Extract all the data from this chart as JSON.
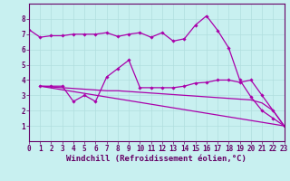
{
  "background_color": "#c8f0f0",
  "line_color": "#aa00aa",
  "grid_color": "#b0dede",
  "xlabel": "Windchill (Refroidissement éolien,°C)",
  "xlabel_fontsize": 6.5,
  "tick_fontsize": 5.5,
  "xlim": [
    0,
    23
  ],
  "ylim": [
    0,
    9
  ],
  "yticks": [
    1,
    2,
    3,
    4,
    5,
    6,
    7,
    8
  ],
  "xticks": [
    0,
    1,
    2,
    3,
    4,
    5,
    6,
    7,
    8,
    9,
    10,
    11,
    12,
    13,
    14,
    15,
    16,
    17,
    18,
    19,
    20,
    21,
    22,
    23
  ],
  "lines": [
    {
      "x": [
        0,
        1,
        2,
        3,
        4,
        5,
        6,
        7,
        8,
        9,
        10,
        11,
        12,
        13,
        14,
        15,
        16,
        17,
        18,
        19,
        20,
        21,
        22,
        23
      ],
      "y": [
        7.3,
        6.8,
        6.9,
        6.9,
        7.0,
        7.0,
        7.0,
        7.1,
        6.85,
        7.0,
        7.1,
        6.8,
        7.1,
        6.55,
        6.7,
        7.6,
        8.2,
        7.25,
        6.1,
        4.0,
        2.9,
        2.0,
        1.5,
        1.0
      ],
      "marker": "D",
      "markersize": 1.8,
      "lw": 0.9
    },
    {
      "x": [
        1,
        2,
        3,
        4,
        5,
        6,
        7,
        8,
        9,
        10,
        11,
        12,
        13,
        14,
        15,
        16,
        17,
        18,
        19,
        20,
        21,
        22,
        23
      ],
      "y": [
        3.6,
        3.6,
        3.6,
        2.6,
        3.0,
        2.6,
        4.2,
        4.75,
        5.3,
        3.5,
        3.5,
        3.5,
        3.5,
        3.6,
        3.8,
        3.85,
        4.0,
        4.0,
        3.85,
        4.0,
        3.0,
        2.0,
        1.0
      ],
      "marker": "D",
      "markersize": 1.8,
      "lw": 0.9
    },
    {
      "x": [
        1,
        2,
        3,
        4,
        5,
        6,
        7,
        8,
        9,
        10,
        11,
        12,
        13,
        14,
        15,
        16,
        17,
        18,
        19,
        20,
        21,
        22,
        23
      ],
      "y": [
        3.6,
        3.55,
        3.5,
        3.45,
        3.4,
        3.35,
        3.3,
        3.3,
        3.25,
        3.2,
        3.15,
        3.1,
        3.05,
        3.0,
        2.95,
        2.9,
        2.85,
        2.8,
        2.75,
        2.7,
        2.5,
        2.0,
        1.0
      ],
      "marker": null,
      "markersize": 0,
      "lw": 0.9
    },
    {
      "x": [
        1,
        23
      ],
      "y": [
        3.6,
        1.0
      ],
      "marker": null,
      "markersize": 0,
      "lw": 0.9
    }
  ]
}
